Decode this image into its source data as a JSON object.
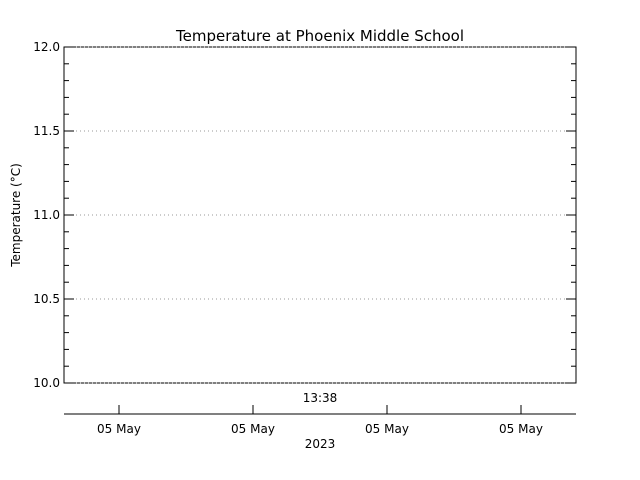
{
  "chart_data": {
    "type": "line",
    "title": "Temperature at Phoenix Middle School",
    "ylabel": "Temperature (°C)",
    "ylim": [
      10.0,
      12.0
    ],
    "yticks": [
      "10.0",
      "10.5",
      "11.0",
      "11.5",
      "12.0"
    ],
    "grid": true,
    "x_annotation": "13:38",
    "xticks": [
      "05 May",
      "05 May",
      "05 May",
      "05 May"
    ],
    "xlabel": "2023",
    "series": []
  }
}
